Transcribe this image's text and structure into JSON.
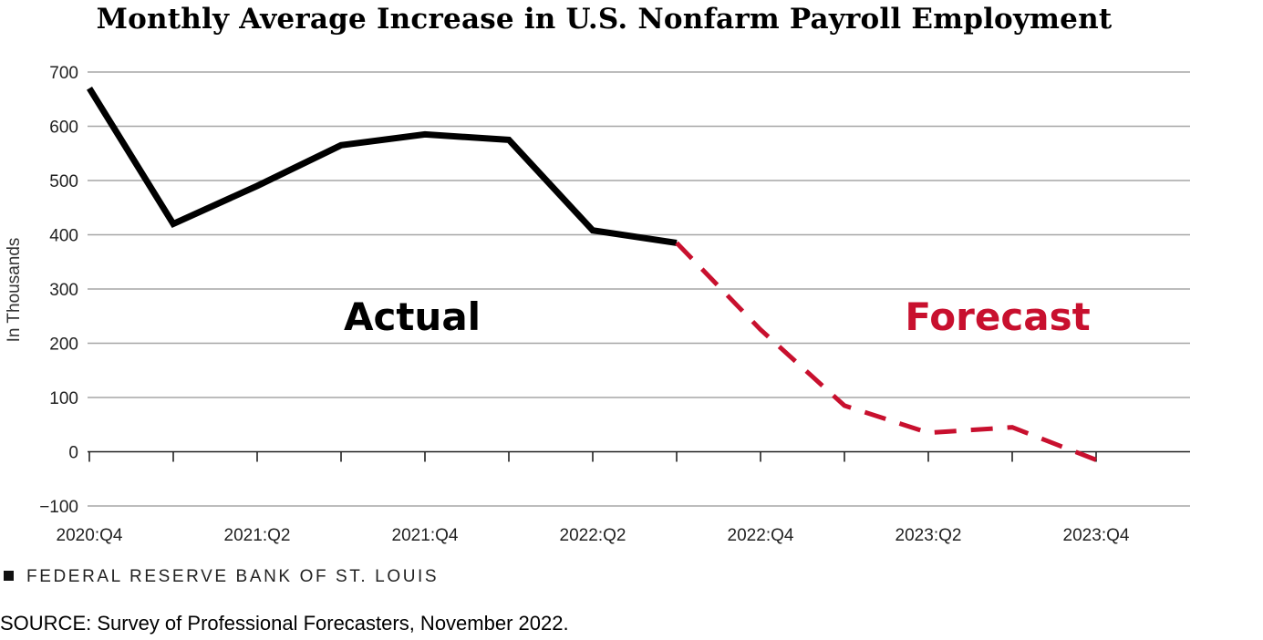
{
  "title": "Monthly Average Increase in U.S. Nonfarm Payroll Employment",
  "bank_label": "FEDERAL RESERVE BANK OF ST. LOUIS",
  "source": "SOURCE: Survey of Professional Forecasters, November 2022.",
  "colors": {
    "actual": "#000000",
    "forecast": "#c8102e",
    "grid": "#a6a6a6"
  },
  "chart_data": {
    "type": "line",
    "title": "Monthly Average Increase in U.S. Nonfarm Payroll Employment",
    "xlabel": "",
    "ylabel": "In Thousands",
    "ylim": [
      -100,
      700
    ],
    "yticks": [
      700,
      600,
      500,
      400,
      300,
      200,
      100,
      0,
      -100
    ],
    "grid": true,
    "categories": [
      "2020:Q4",
      "2021:Q1",
      "2021:Q2",
      "2021:Q3",
      "2021:Q4",
      "2022:Q1",
      "2022:Q2",
      "2022:Q3",
      "2022:Q4",
      "2023:Q1",
      "2023:Q2",
      "2023:Q3",
      "2023:Q4"
    ],
    "xtick_labels": [
      "2020:Q4",
      "2021:Q2",
      "2021:Q4",
      "2022:Q2",
      "2022:Q4",
      "2023:Q2",
      "2023:Q4"
    ],
    "series": [
      {
        "name": "Actual",
        "style": "solid",
        "x": [
          "2020:Q4",
          "2021:Q1",
          "2021:Q2",
          "2021:Q3",
          "2021:Q4",
          "2022:Q1",
          "2022:Q2",
          "2022:Q3"
        ],
        "values": [
          670,
          420,
          490,
          565,
          585,
          575,
          408,
          385
        ]
      },
      {
        "name": "Forecast",
        "style": "dashed",
        "x": [
          "2022:Q3",
          "2022:Q4",
          "2023:Q1",
          "2023:Q2",
          "2023:Q3",
          "2023:Q4"
        ],
        "values": [
          385,
          225,
          85,
          35,
          45,
          -15
        ]
      }
    ],
    "annotations": [
      {
        "text": "Actual",
        "series": "Actual"
      },
      {
        "text": "Forecast",
        "series": "Forecast"
      }
    ]
  }
}
